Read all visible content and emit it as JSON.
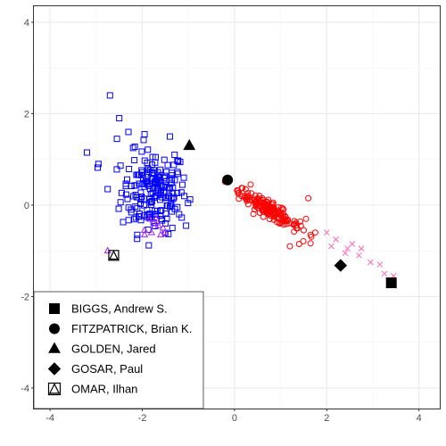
{
  "chart_data": {
    "type": "scatter",
    "title": "",
    "xlabel": "",
    "ylabel": "",
    "xlim": [
      -4.35,
      4.45
    ],
    "ylim": [
      -4.45,
      4.35
    ],
    "x_ticks": [
      -4,
      -2,
      0,
      2,
      4
    ],
    "y_ticks": [
      -4,
      -2,
      0,
      2,
      4
    ],
    "x_tick_labels": [
      "-4",
      "-2",
      "0",
      "2",
      "4"
    ],
    "y_tick_labels": [
      "-4",
      "-2",
      "0",
      "2",
      "4"
    ],
    "grid": true,
    "legend_position": "bottom-left",
    "colors": {
      "panel_border": "#333333",
      "grid_major": "#ebebeb",
      "grid_minor": "#f5f5f5",
      "cluster_left": "#0000ff",
      "cluster_right": "#ff0000",
      "cluster_pink": "#ff69b4",
      "cluster_purple": "#a020f0",
      "highlight": "#000000"
    },
    "clusters": [
      {
        "id": "left",
        "shape": "open-square",
        "color": "#0000ff",
        "center": [
          -1.75,
          0.3
        ],
        "spread": [
          0.35,
          0.45
        ],
        "count": 190,
        "outliers": [
          [
            -2.7,
            2.4
          ],
          [
            -2.5,
            1.9
          ],
          [
            -2.3,
            1.6
          ],
          [
            -3.2,
            1.15
          ],
          [
            -2.95,
            0.9
          ],
          [
            -2.55,
            1.45
          ],
          [
            -1.4,
            1.5
          ],
          [
            -1.3,
            1.1
          ],
          [
            -1.2,
            -0.2
          ],
          [
            -1.5,
            -0.4
          ],
          [
            -2.75,
            0.35
          ],
          [
            -1.1,
            0.6
          ],
          [
            -1.05,
            -0.45
          ],
          [
            -2.2,
            1.25
          ],
          [
            -1.95,
            1.55
          ]
        ]
      },
      {
        "id": "right",
        "shape": "open-circle",
        "color": "#ff0000",
        "center": [
          0.75,
          -0.1
        ],
        "slope": -0.62,
        "spread": [
          0.33,
          0.09
        ],
        "count": 170,
        "outliers": [
          [
            1.6,
            0.15
          ],
          [
            1.75,
            -0.6
          ],
          [
            1.65,
            -0.65
          ],
          [
            1.5,
            -0.55
          ],
          [
            1.55,
            -0.3
          ],
          [
            1.2,
            -0.9
          ],
          [
            0.35,
            0.45
          ],
          [
            0.15,
            0.2
          ],
          [
            1.4,
            -0.85
          ]
        ]
      },
      {
        "id": "pink",
        "shape": "x",
        "color": "#ff69b4",
        "points": [
          [
            2.0,
            -0.6
          ],
          [
            2.1,
            -0.9
          ],
          [
            2.45,
            -0.95
          ],
          [
            2.55,
            -0.85
          ],
          [
            2.7,
            -1.1
          ],
          [
            2.75,
            -0.95
          ],
          [
            2.95,
            -1.25
          ],
          [
            3.15,
            -1.3
          ],
          [
            3.25,
            -1.5
          ],
          [
            3.45,
            -1.55
          ],
          [
            2.2,
            -0.75
          ],
          [
            2.4,
            -1.05
          ]
        ]
      },
      {
        "id": "purple",
        "shape": "open-triangle",
        "color": "#a020f0",
        "points": [
          [
            -1.95,
            -0.55
          ],
          [
            -1.8,
            -0.6
          ],
          [
            -1.6,
            -0.65
          ],
          [
            -1.75,
            -0.4
          ],
          [
            -1.85,
            -0.3
          ],
          [
            -1.5,
            -0.6
          ],
          [
            -1.95,
            -0.65
          ],
          [
            -1.65,
            -0.45
          ],
          [
            -1.55,
            -0.5
          ],
          [
            -1.7,
            -0.3
          ]
        ]
      }
    ],
    "series": [
      {
        "name": "BIGGS, Andrew S.",
        "shape": "filled-square",
        "color": "#000000",
        "x": 3.4,
        "y": -1.7
      },
      {
        "name": "FITZPATRICK, Brian K.",
        "shape": "filled-circle",
        "color": "#000000",
        "x": -0.15,
        "y": 0.55
      },
      {
        "name": "GOLDEN, Jared",
        "shape": "filled-triangle",
        "color": "#000000",
        "x": -0.98,
        "y": 1.3
      },
      {
        "name": "GOSAR, Paul",
        "shape": "filled-diamond",
        "color": "#000000",
        "x": 2.3,
        "y": -1.32
      },
      {
        "name": "OMAR, Ilhan",
        "shape": "square-triangle",
        "color": "#000000",
        "x": -2.62,
        "y": -1.1
      }
    ],
    "extra_points": [
      {
        "shape": "open-triangle",
        "color": "#a020f0",
        "x": -2.75,
        "y": -1.0
      }
    ]
  }
}
